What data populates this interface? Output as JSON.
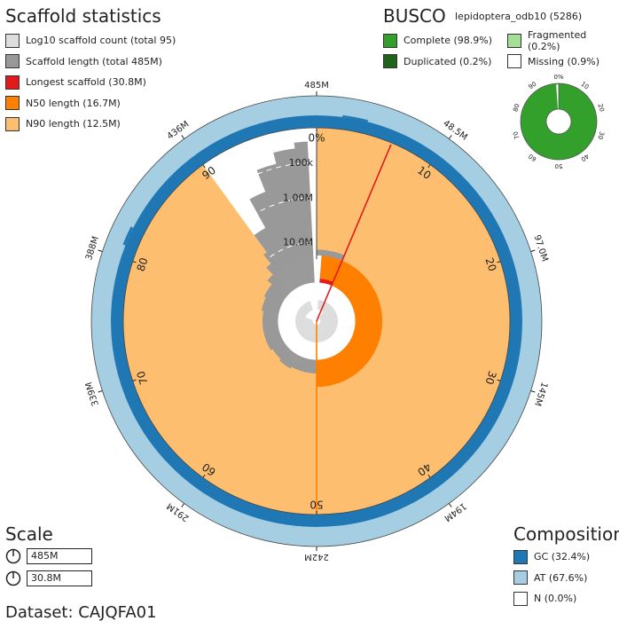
{
  "scaffold_stats": {
    "title": "Scaffold statistics",
    "legend": [
      {
        "label": "Log10 scaffold count (total 95)",
        "color": "#dddddd"
      },
      {
        "label": "Scaffold length (total 485M)",
        "color": "#999999"
      },
      {
        "label": "Longest scaffold (30.8M)",
        "color": "#e31a1c"
      },
      {
        "label": "N50 length (16.7M)",
        "color": "#ff7f00"
      },
      {
        "label": "N90 length (12.5M)",
        "color": "#fdbf6f"
      }
    ]
  },
  "busco": {
    "title": "BUSCO",
    "lineage": "lepidoptera_odb10 (5286)",
    "legend": [
      {
        "label": "Complete (98.9%)",
        "color": "#33a02c"
      },
      {
        "label": "Fragmented (0.2%)",
        "color": "#a3e095"
      },
      {
        "label": "Duplicated (0.2%)",
        "color": "#20641c"
      },
      {
        "label": "Missing (0.9%)",
        "color": "#ffffff"
      }
    ],
    "ticks": [
      "0%",
      "10",
      "20",
      "30",
      "40",
      "50",
      "60",
      "70",
      "80",
      "90"
    ]
  },
  "scale": {
    "title": "Scale",
    "items": [
      {
        "label": "485M"
      },
      {
        "label": "30.8M"
      }
    ]
  },
  "composition": {
    "title": "Composition",
    "legend": [
      {
        "label": "GC (32.4%)",
        "color": "#1f78b4"
      },
      {
        "label": "AT (67.6%)",
        "color": "#a6cee3"
      },
      {
        "label": "N (0.0%)",
        "color": "#ffffff"
      }
    ]
  },
  "dataset": "Dataset: CAJQFA01",
  "chart_data": {
    "type": "snail",
    "total_length": "485M",
    "scaffold_count": 95,
    "longest_scaffold": "30.8M",
    "n50_length": "16.7M",
    "n90_length": "12.5M",
    "gc_percent": 32.4,
    "at_percent": 67.6,
    "n_percent": 0.0,
    "outer_length_ticks": [
      "485M",
      "48.5M",
      "97.0M",
      "145M",
      "194M",
      "242M",
      "291M",
      "339M",
      "388M",
      "436M"
    ],
    "percent_ticks": [
      "0%",
      "10",
      "20",
      "30",
      "40",
      "50",
      "60",
      "70",
      "80",
      "90"
    ],
    "radial_scale_labels": [
      "100k",
      "1.00M",
      "10.0M"
    ],
    "n50_percent": 50,
    "n90_percent": 90,
    "longest_percent": 6.35,
    "scaffold_length_profile_pct": [
      [
        0,
        0.37
      ],
      [
        2,
        0.37
      ],
      [
        6.35,
        0.32
      ],
      [
        7,
        0.26
      ],
      [
        9,
        0.25
      ],
      [
        12,
        0.26
      ],
      [
        16,
        0.28
      ],
      [
        20,
        0.27
      ],
      [
        24,
        0.26
      ],
      [
        28,
        0.27
      ],
      [
        32,
        0.26
      ],
      [
        36,
        0.26
      ],
      [
        40,
        0.26
      ],
      [
        44,
        0.27
      ],
      [
        48,
        0.27
      ],
      [
        50,
        0.27
      ],
      [
        54,
        0.27
      ],
      [
        58,
        0.28
      ],
      [
        62,
        0.27
      ],
      [
        66,
        0.28
      ],
      [
        70,
        0.28
      ],
      [
        74,
        0.28
      ],
      [
        78,
        0.29
      ],
      [
        82,
        0.3
      ],
      [
        86,
        0.33
      ],
      [
        88,
        0.38
      ],
      [
        89.3,
        0.44
      ],
      [
        90,
        0.55
      ],
      [
        92,
        0.72
      ],
      [
        94,
        0.84
      ],
      [
        96,
        0.9
      ],
      [
        98,
        0.93
      ],
      [
        99.4,
        0.96
      ],
      [
        100,
        0.97
      ]
    ],
    "busco_complete": 98.9,
    "busco_duplicated": 0.2,
    "busco_fragmented": 0.2,
    "busco_missing": 0.9
  }
}
